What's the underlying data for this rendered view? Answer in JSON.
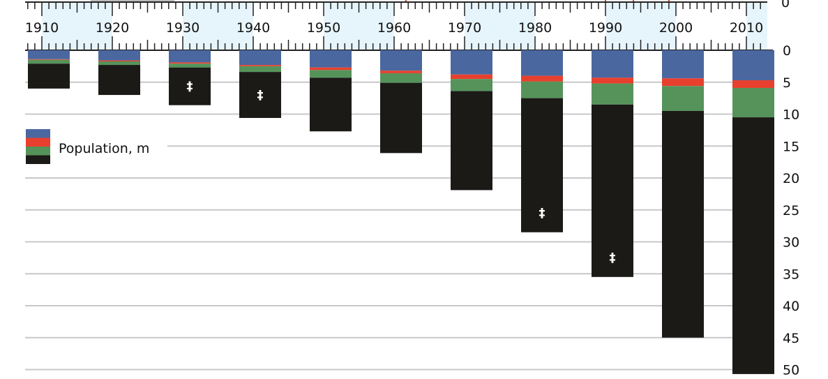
{
  "chart_data": {
    "type": "bar",
    "stacked": true,
    "orientation": "downward",
    "categories": [
      "1910",
      "1920",
      "1930",
      "1940",
      "1950",
      "1960",
      "1970",
      "1980",
      "1990",
      "2000",
      "2010"
    ],
    "x_years": [
      1910,
      1920,
      1930,
      1940,
      1950,
      1960,
      1970,
      1980,
      1990,
      2000,
      2010
    ],
    "series": [
      {
        "color": "#4a67a0",
        "values": [
          1.4,
          1.6,
          1.9,
          2.3,
          2.7,
          3.2,
          3.8,
          4.0,
          4.3,
          4.4,
          4.7
        ]
      },
      {
        "color": "#e8402e",
        "values": [
          0.1,
          0.15,
          0.2,
          0.2,
          0.4,
          0.4,
          0.7,
          0.9,
          0.9,
          1.2,
          1.2
        ]
      },
      {
        "color": "#55935a",
        "values": [
          0.6,
          0.55,
          0.6,
          0.9,
          1.2,
          1.5,
          1.9,
          2.6,
          3.3,
          3.9,
          4.6
        ]
      },
      {
        "color": "#1c1a17",
        "values": [
          3.9,
          4.7,
          5.9,
          7.2,
          8.4,
          11.0,
          15.5,
          21.0,
          27.0,
          35.5,
          40.2
        ]
      }
    ],
    "totals": [
      6.0,
      7.0,
      8.6,
      10.6,
      12.7,
      16.1,
      21.9,
      28.5,
      35.5,
      45.0,
      50.7
    ],
    "daggers": [
      "1930",
      "1940",
      "1980",
      "1990"
    ],
    "dagger_symbol": "‡",
    "legend_label": "Population, m",
    "legend_placement": "left",
    "ylim": [
      0,
      50
    ],
    "yticks": [
      "0",
      "5",
      "10",
      "15",
      "20",
      "25",
      "30",
      "35",
      "40",
      "45",
      "50"
    ],
    "xticks": [
      "1910",
      "1920",
      "1930",
      "1940",
      "1950",
      "1960",
      "1970",
      "1980",
      "1990",
      "2000",
      "2010"
    ],
    "top_axis_zero": "0",
    "grid": true
  }
}
